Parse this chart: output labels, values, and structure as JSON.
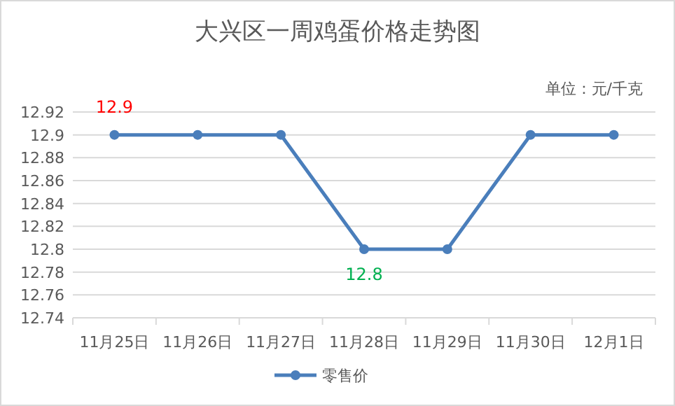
{
  "chart_data": {
    "type": "line",
    "title": "大兴区一周鸡蛋价格走势图",
    "categories": [
      "11月25日",
      "11月26日",
      "11月27日",
      "11月28日",
      "11月29日",
      "11月30日",
      "12月1日"
    ],
    "series": [
      {
        "name": "零售价",
        "color": "#4a7ebb",
        "values": [
          12.9,
          12.9,
          12.9,
          12.8,
          12.8,
          12.9,
          12.9
        ]
      }
    ],
    "ylim": [
      12.74,
      12.92
    ],
    "yticks": [
      12.74,
      12.76,
      12.78,
      12.8,
      12.82,
      12.84,
      12.86,
      12.88,
      12.9,
      12.92
    ],
    "grid": "y",
    "legend": "bottom",
    "marker": "circle",
    "line_style": "solid",
    "annotations": [
      {
        "text": "12.9",
        "x": "11月25日",
        "y": 12.9
      },
      {
        "text": "12.8",
        "x": "11月28日",
        "y": 12.8
      },
      "单位：元/千克"
    ]
  }
}
